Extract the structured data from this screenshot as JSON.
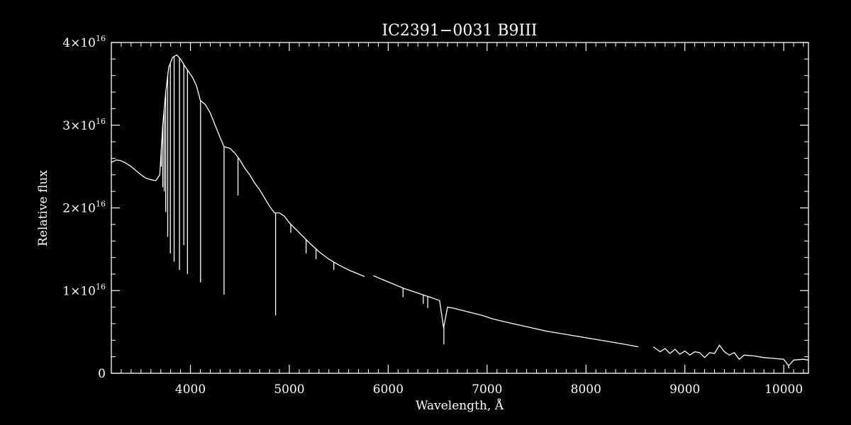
{
  "chart_data": {
    "type": "line",
    "title": "IC2391−0031   B9III",
    "xlabel": "Wavelength, Å",
    "ylabel": "Relative flux",
    "xlim": [
      3200,
      10250
    ],
    "ylim": [
      0,
      4e+16
    ],
    "grid": false,
    "legend": "none",
    "color": "#ffffff",
    "background": "#000000",
    "x_ticks": [
      {
        "value": 4000,
        "label": "4000"
      },
      {
        "value": 5000,
        "label": "5000"
      },
      {
        "value": 6000,
        "label": "6000"
      },
      {
        "value": 7000,
        "label": "7000"
      },
      {
        "value": 8000,
        "label": "8000"
      },
      {
        "value": 9000,
        "label": "9000"
      },
      {
        "value": 10000,
        "label": "10000"
      }
    ],
    "y_ticks": [
      {
        "value": 0,
        "label": "0",
        "mantissa": "0",
        "exponent": ""
      },
      {
        "value": 1e+16,
        "label": "1×10",
        "mantissa": "1×10",
        "exponent": "16"
      },
      {
        "value": 2e+16,
        "label": "2×10",
        "mantissa": "2×10",
        "exponent": "16"
      },
      {
        "value": 3e+16,
        "label": "3×10",
        "mantissa": "3×10",
        "exponent": "16"
      },
      {
        "value": 4e+16,
        "label": "4×10",
        "mantissa": "4×10",
        "exponent": "16"
      }
    ],
    "series": [
      {
        "segments": [
          {
            "x": [
              3200,
              3250,
              3300,
              3350,
              3400,
              3450,
              3500,
              3550,
              3600,
              3650,
              3690,
              3720,
              3750,
              3780,
              3820,
              3860,
              3900,
              3940,
              3980,
              4020,
              4060,
              4100,
              4150,
              4200,
              4250,
              4300,
              4340,
              4400,
              4450,
              4500,
              4550,
              4600,
              4650,
              4700,
              4750,
              4800,
              4850,
              4900,
              4950,
              5000,
              5100,
              5200,
              5300,
              5400,
              5500,
              5600,
              5700,
              5760
            ],
            "y": [
              2.55e+16,
              2.58e+16,
              2.57e+16,
              2.54e+16,
              2.5e+16,
              2.45e+16,
              2.4e+16,
              2.36e+16,
              2.34e+16,
              2.33e+16,
              2.4e+16,
              3e+16,
              3.4e+16,
              3.7e+16,
              3.82e+16,
              3.85e+16,
              3.8e+16,
              3.72e+16,
              3.65e+16,
              3.58e+16,
              3.48e+16,
              3.3e+16,
              3.25e+16,
              3.15e+16,
              3e+16,
              2.85e+16,
              2.74e+16,
              2.72e+16,
              2.66e+16,
              2.58e+16,
              2.48e+16,
              2.4e+16,
              2.3e+16,
              2.22e+16,
              2.12e+16,
              2.02e+16,
              1.94e+16,
              1.94e+16,
              1.9e+16,
              1.82e+16,
              1.7e+16,
              1.58e+16,
              1.47e+16,
              1.38e+16,
              1.31e+16,
              1.25e+16,
              1.2e+16,
              1.17e+16
            ]
          },
          {
            "x": [
              5850,
              5950,
              6050,
              6150,
              6250,
              6350,
              6450,
              6520,
              6560,
              6600,
              6650,
              6750,
              6850,
              6950,
              7050,
              7150,
              7300,
              7450,
              7600,
              7750,
              7900,
              8050,
              8200,
              8350,
              8530
            ],
            "y": [
              1.18e+16,
              1.13e+16,
              1.08e+16,
              1.03e+16,
              9900000000000000.0,
              9500000000000000.0,
              9100000000000000.0,
              8800000000000000.0,
              5500000000000000.0,
              8000000000000000.0,
              7900000000000000.0,
              7600000000000000.0,
              7300000000000000.0,
              7000000000000000.0,
              6600000000000000.0,
              6300000000000000.0,
              5900000000000000.0,
              5500000000000000.0,
              5100000000000000.0,
              4800000000000000.0,
              4500000000000000.0,
              4200000000000000.0,
              3900000000000000.0,
              3600000000000000.0,
              3200000000000000.0
            ]
          },
          {
            "x": [
              8680,
              8750,
              8800,
              8850,
              8900,
              8950,
              9000,
              9050,
              9100,
              9150,
              9200,
              9250,
              9300,
              9350,
              9400,
              9450,
              9500,
              9550,
              9600,
              9700,
              9800,
              9900,
              10000,
              10050,
              10100,
              10200,
              10250
            ],
            "y": [
              3200000000000000.0,
              2600000000000000.0,
              3000000000000000.0,
              2400000000000000.0,
              2900000000000000.0,
              2300000000000000.0,
              2700000000000000.0,
              2200000000000000.0,
              2600000000000000.0,
              2500000000000000.0,
              1900000000000000.0,
              2500000000000000.0,
              2400000000000000.0,
              3400000000000000.0,
              2600000000000000.0,
              2200000000000000.0,
              2500000000000000.0,
              1700000000000000.0,
              2200000000000000.0,
              2100000000000000.0,
              1900000000000000.0,
              1800000000000000.0,
              1700000000000000.0,
              900000000000000.0,
              1600000000000000.0,
              1700000000000000.0,
              1600000000000000.0
            ]
          }
        ],
        "absorption_lines": [
          {
            "x": 3705,
            "y": 2.5e+16
          },
          {
            "x": 3720,
            "y": 2.25e+16
          },
          {
            "x": 3735,
            "y": 2.2e+16
          },
          {
            "x": 3750,
            "y": 1.95e+16
          },
          {
            "x": 3770,
            "y": 1.65e+16
          },
          {
            "x": 3797,
            "y": 1.45e+16
          },
          {
            "x": 3835,
            "y": 1.35e+16
          },
          {
            "x": 3889,
            "y": 1.25e+16
          },
          {
            "x": 3933,
            "y": 1.55e+16
          },
          {
            "x": 3970,
            "y": 1.2e+16
          },
          {
            "x": 4102,
            "y": 1.1e+16
          },
          {
            "x": 4340,
            "y": 9500000000000000.0
          },
          {
            "x": 4481,
            "y": 2.15e+16
          },
          {
            "x": 4861,
            "y": 7000000000000000.0
          },
          {
            "x": 5015,
            "y": 1.7e+16
          },
          {
            "x": 5170,
            "y": 1.45e+16
          },
          {
            "x": 5270,
            "y": 1.38e+16
          },
          {
            "x": 5450,
            "y": 1.25e+16
          },
          {
            "x": 6150,
            "y": 9200000000000000.0
          },
          {
            "x": 6355,
            "y": 8400000000000000.0
          },
          {
            "x": 6400,
            "y": 7900000000000000.0
          },
          {
            "x": 6563,
            "y": 3500000000000000.0
          },
          {
            "x": 10050,
            "y": 600000000000000.0
          }
        ]
      }
    ]
  }
}
